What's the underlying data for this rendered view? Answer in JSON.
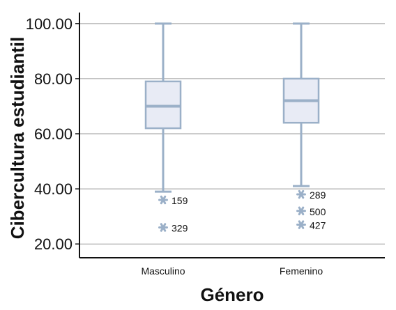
{
  "chart_data": {
    "type": "boxplot",
    "title": "",
    "xlabel": "Género",
    "ylabel": "Cibercultura estudiantil",
    "ylim": [
      15,
      104
    ],
    "yticks": [
      20,
      40,
      60,
      80,
      100
    ],
    "ytick_labels": [
      "20.00",
      "40.00",
      "60.00",
      "80.00",
      "100.00"
    ],
    "grid": "horizontal",
    "categories": [
      "Masculino",
      "Femenino"
    ],
    "boxes": [
      {
        "category": "Masculino",
        "whisker_low": 39,
        "q1": 62,
        "median": 70,
        "q3": 79,
        "whisker_high": 100,
        "outliers": [
          {
            "label": "159",
            "value": 36
          },
          {
            "label": "329",
            "value": 26
          }
        ]
      },
      {
        "category": "Femenino",
        "whisker_low": 41,
        "q1": 64,
        "median": 72,
        "q3": 80,
        "whisker_high": 100,
        "outliers": [
          {
            "label": "289",
            "value": 38
          },
          {
            "label": "500",
            "value": 32
          },
          {
            "label": "427",
            "value": 27
          }
        ]
      }
    ],
    "colors": {
      "box_fill": "#e8ebf5",
      "box_stroke": "#9bb0c8",
      "grid": "#9a9a9a",
      "axis": "#111111"
    }
  }
}
